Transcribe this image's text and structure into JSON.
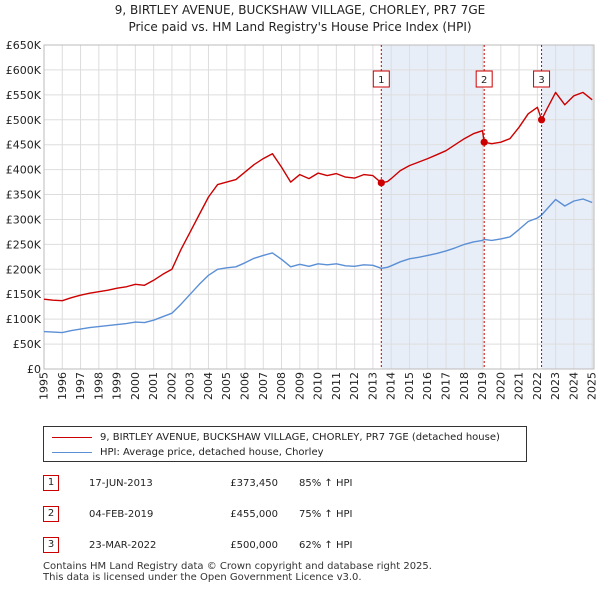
{
  "header": {
    "title": "9, BIRTLEY AVENUE, BUCKSHAW VILLAGE, CHORLEY, PR7 7GE",
    "subtitle": "Price paid vs. HM Land Registry's House Price Index (HPI)"
  },
  "colors": {
    "property_line": "#cc0000",
    "hpi_line": "#5b8fd6",
    "highlight_band": "#e8eef8",
    "grid": "#dddddd",
    "marker_border": "#cc0000"
  },
  "chart_data": {
    "type": "line",
    "title": "Price paid vs. HM Land Registry's House Price Index (HPI)",
    "xlabel": "",
    "ylabel": "",
    "xlim": [
      1995.0,
      2025.1
    ],
    "ylim": [
      0,
      650000
    ],
    "grid": true,
    "y_ticks": [
      {
        "value": 0,
        "label": "£0"
      },
      {
        "value": 50000,
        "label": "£50K"
      },
      {
        "value": 100000,
        "label": "£100K"
      },
      {
        "value": 150000,
        "label": "£150K"
      },
      {
        "value": 200000,
        "label": "£200K"
      },
      {
        "value": 250000,
        "label": "£250K"
      },
      {
        "value": 300000,
        "label": "£300K"
      },
      {
        "value": 350000,
        "label": "£350K"
      },
      {
        "value": 400000,
        "label": "£400K"
      },
      {
        "value": 450000,
        "label": "£450K"
      },
      {
        "value": 500000,
        "label": "£500K"
      },
      {
        "value": 550000,
        "label": "£550K"
      },
      {
        "value": 600000,
        "label": "£600K"
      },
      {
        "value": 650000,
        "label": "£650K"
      }
    ],
    "x_ticks": [
      "1995",
      "1996",
      "1997",
      "1998",
      "1999",
      "2000",
      "2001",
      "2002",
      "2003",
      "2004",
      "2005",
      "2006",
      "2007",
      "2008",
      "2009",
      "2010",
      "2011",
      "2012",
      "2013",
      "2014",
      "2015",
      "2016",
      "2017",
      "2018",
      "2019",
      "2020",
      "2021",
      "2022",
      "2023",
      "2024",
      "2025"
    ],
    "series": [
      {
        "name": "9, BIRTLEY AVENUE, BUCKSHAW VILLAGE, CHORLEY, PR7 7GE (detached house)",
        "color": "#cc0000",
        "x": [
          1995.0,
          1995.5,
          1996.0,
          1996.5,
          1997.0,
          1997.5,
          1998.0,
          1998.5,
          1999.0,
          1999.5,
          2000.0,
          2000.5,
          2001.0,
          2001.5,
          2002.0,
          2002.5,
          2003.0,
          2003.5,
          2004.0,
          2004.5,
          2005.0,
          2005.5,
          2006.0,
          2006.5,
          2007.0,
          2007.5,
          2008.0,
          2008.5,
          2009.0,
          2009.5,
          2010.0,
          2010.5,
          2011.0,
          2011.5,
          2012.0,
          2012.5,
          2013.0,
          2013.46,
          2013.8,
          2014.0,
          2014.5,
          2015.0,
          2015.5,
          2016.0,
          2016.5,
          2017.0,
          2017.5,
          2018.0,
          2018.5,
          2019.0,
          2019.09,
          2019.5,
          2020.0,
          2020.5,
          2021.0,
          2021.5,
          2022.0,
          2022.23,
          2022.5,
          2023.0,
          2023.5,
          2024.0,
          2024.5,
          2025.0
        ],
        "values": [
          140000,
          138000,
          137000,
          143000,
          148000,
          152000,
          155000,
          158000,
          162000,
          165000,
          170000,
          168000,
          178000,
          190000,
          200000,
          240000,
          275000,
          310000,
          345000,
          370000,
          375000,
          380000,
          395000,
          410000,
          422000,
          432000,
          405000,
          375000,
          390000,
          382000,
          393000,
          388000,
          392000,
          385000,
          383000,
          390000,
          388000,
          373450,
          376000,
          382000,
          398000,
          408000,
          415000,
          422000,
          430000,
          438000,
          450000,
          462000,
          472000,
          478000,
          455000,
          452000,
          455000,
          462000,
          485000,
          512000,
          525000,
          500000,
          520000,
          555000,
          530000,
          548000,
          555000,
          540000
        ]
      },
      {
        "name": "HPI: Average price, detached house, Chorley",
        "color": "#5b8fd6",
        "x": [
          1995.0,
          1995.5,
          1996.0,
          1996.5,
          1997.0,
          1997.5,
          1998.0,
          1998.5,
          1999.0,
          1999.5,
          2000.0,
          2000.5,
          2001.0,
          2001.5,
          2002.0,
          2002.5,
          2003.0,
          2003.5,
          2004.0,
          2004.5,
          2005.0,
          2005.5,
          2006.0,
          2006.5,
          2007.0,
          2007.5,
          2008.0,
          2008.5,
          2009.0,
          2009.5,
          2010.0,
          2010.5,
          2011.0,
          2011.5,
          2012.0,
          2012.5,
          2013.0,
          2013.46,
          2013.8,
          2014.0,
          2014.5,
          2015.0,
          2015.5,
          2016.0,
          2016.5,
          2017.0,
          2017.5,
          2018.0,
          2018.5,
          2019.0,
          2019.09,
          2019.5,
          2020.0,
          2020.5,
          2021.0,
          2021.5,
          2022.0,
          2022.23,
          2022.5,
          2023.0,
          2023.5,
          2024.0,
          2024.5,
          2025.0
        ],
        "values": [
          75000,
          74000,
          73000,
          77000,
          80000,
          83000,
          85000,
          87000,
          89000,
          91000,
          94000,
          93000,
          98000,
          105000,
          112000,
          130000,
          150000,
          170000,
          188000,
          200000,
          203000,
          205000,
          213000,
          222000,
          228000,
          233000,
          220000,
          205000,
          210000,
          206000,
          211000,
          209000,
          211000,
          207000,
          206000,
          209000,
          208000,
          202000,
          204000,
          207000,
          215000,
          221000,
          224000,
          228000,
          232000,
          237000,
          243000,
          250000,
          255000,
          258000,
          260000,
          258000,
          261000,
          265000,
          280000,
          296000,
          303000,
          309000,
          320000,
          340000,
          327000,
          337000,
          341000,
          334000
        ]
      }
    ],
    "sales": [
      {
        "label": "1",
        "x": 2013.46,
        "price": 373450,
        "date": "17-JUN-2013",
        "price_text": "£373,450",
        "hpi_text": "85% ↑ HPI"
      },
      {
        "label": "2",
        "x": 2019.09,
        "price": 455000,
        "date": "04-FEB-2019",
        "price_text": "£455,000",
        "hpi_text": "75% ↑ HPI"
      },
      {
        "label": "3",
        "x": 2022.23,
        "price": 500000,
        "date": "23-MAR-2022",
        "price_text": "£500,000",
        "hpi_text": "62% ↑ HPI"
      }
    ],
    "shaded_ranges": [
      [
        2013.46,
        2019.09
      ],
      [
        2022.23,
        2025.1
      ]
    ]
  },
  "legend": {
    "property_label": "9, BIRTLEY AVENUE, BUCKSHAW VILLAGE, CHORLEY, PR7 7GE (detached house)",
    "hpi_label": "HPI: Average price, detached house, Chorley"
  },
  "footer": {
    "line1": "Contains HM Land Registry data © Crown copyright and database right 2025.",
    "line2": "This data is licensed under the Open Government Licence v3.0."
  }
}
